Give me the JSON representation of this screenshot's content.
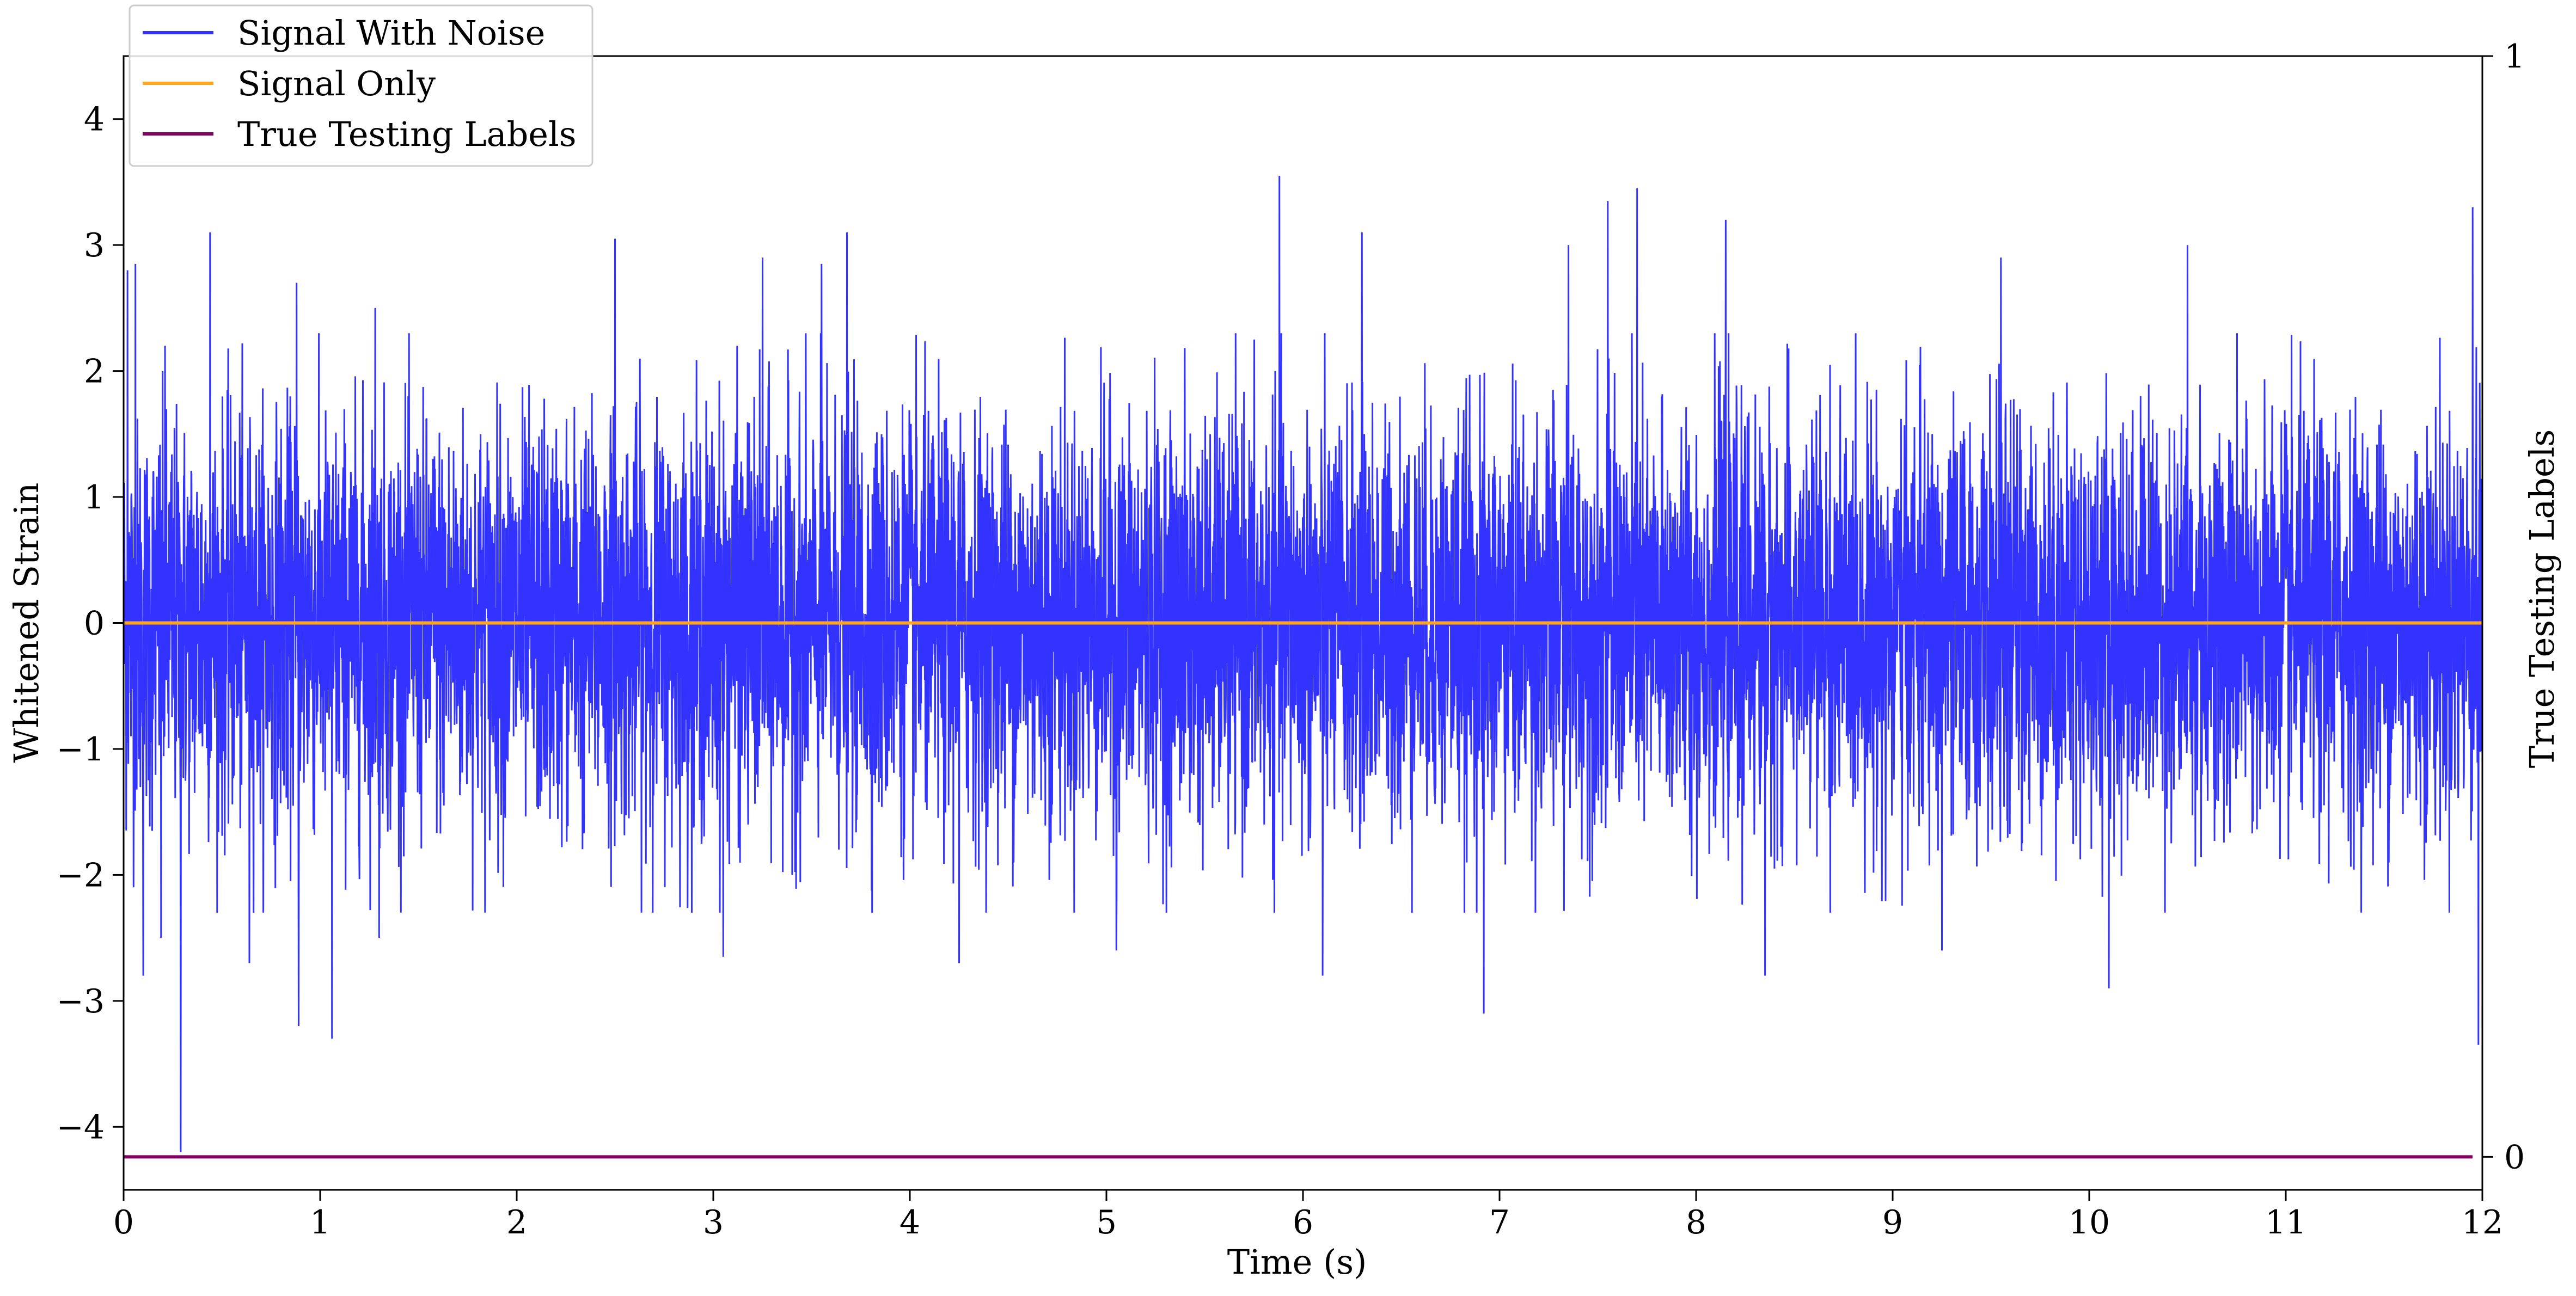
{
  "chart_data": {
    "type": "line",
    "xlabel": "Time (s)",
    "ylabel": "Whitened Strain",
    "y2label": "True Testing Labels",
    "xlim": [
      0,
      12
    ],
    "ylim": [
      -4.5,
      4.5
    ],
    "y2lim": [
      -0.03,
      1
    ],
    "x_ticks": [
      0,
      1,
      2,
      3,
      4,
      5,
      6,
      7,
      8,
      9,
      10,
      11,
      12
    ],
    "y_ticks": [
      -4,
      -3,
      -2,
      -1,
      0,
      1,
      2,
      3,
      4
    ],
    "y2_ticks": [
      0,
      1
    ],
    "grid": false,
    "legend_position": "top-left",
    "colors": {
      "signal_with_noise": "#3333ff",
      "signal_only": "#ffa520",
      "true_labels": "#800060"
    },
    "series": [
      {
        "name": "Signal With Noise",
        "axis": "left",
        "style": "dense-noise",
        "description_stats": {
          "typical_abs_max": 2.2,
          "std": 0.8
        },
        "peaks": [
          {
            "x": 0.02,
            "y": 2.8
          },
          {
            "x": 0.06,
            "y": 2.85
          },
          {
            "x": 0.21,
            "y": 2.2
          },
          {
            "x": 0.44,
            "y": 3.1
          },
          {
            "x": 0.88,
            "y": 2.7
          },
          {
            "x": 1.28,
            "y": 2.5
          },
          {
            "x": 2.5,
            "y": 3.05
          },
          {
            "x": 3.25,
            "y": 2.9
          },
          {
            "x": 3.55,
            "y": 2.85
          },
          {
            "x": 3.68,
            "y": 3.1
          },
          {
            "x": 5.88,
            "y": 3.55
          },
          {
            "x": 6.3,
            "y": 3.1
          },
          {
            "x": 7.35,
            "y": 3.0
          },
          {
            "x": 7.55,
            "y": 3.35
          },
          {
            "x": 7.7,
            "y": 3.45
          },
          {
            "x": 8.15,
            "y": 3.2
          },
          {
            "x": 9.55,
            "y": 2.9
          },
          {
            "x": 10.5,
            "y": 3.0
          },
          {
            "x": 11.95,
            "y": 3.3
          }
        ],
        "troughs": [
          {
            "x": 0.1,
            "y": -2.8
          },
          {
            "x": 0.19,
            "y": -2.5
          },
          {
            "x": 0.29,
            "y": -4.2
          },
          {
            "x": 0.64,
            "y": -2.7
          },
          {
            "x": 0.89,
            "y": -3.2
          },
          {
            "x": 1.06,
            "y": -3.3
          },
          {
            "x": 1.3,
            "y": -2.5
          },
          {
            "x": 3.05,
            "y": -2.65
          },
          {
            "x": 4.25,
            "y": -2.7
          },
          {
            "x": 5.05,
            "y": -2.6
          },
          {
            "x": 6.1,
            "y": -2.8
          },
          {
            "x": 6.92,
            "y": -3.1
          },
          {
            "x": 8.35,
            "y": -2.8
          },
          {
            "x": 9.25,
            "y": -2.6
          },
          {
            "x": 10.1,
            "y": -2.9
          },
          {
            "x": 11.98,
            "y": -3.35
          }
        ]
      },
      {
        "name": "Signal Only",
        "axis": "left",
        "x": [
          0,
          12
        ],
        "y": [
          0,
          0
        ]
      },
      {
        "name": "True Testing Labels",
        "axis": "right",
        "x": [
          0,
          11.95
        ],
        "y": [
          0,
          0
        ]
      }
    ]
  }
}
